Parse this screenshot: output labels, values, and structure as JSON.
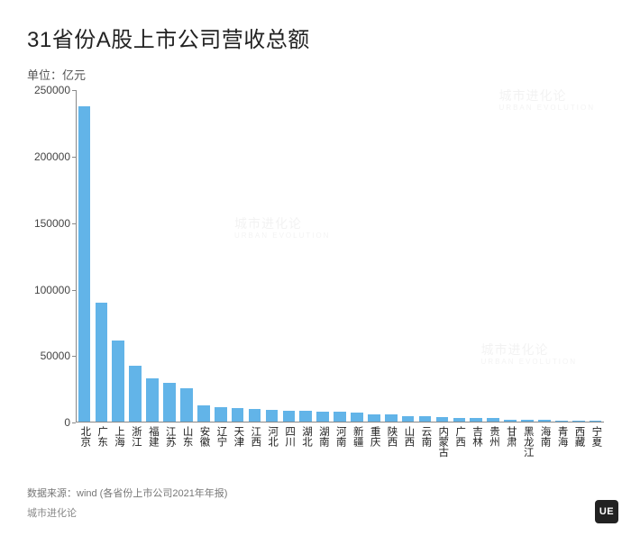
{
  "title": "31省份A股上市公司营收总额",
  "subtitle": "单位：亿元",
  "source_line": "数据来源：wind (各省份上市公司2021年年报)",
  "brand_line": "城市进化论",
  "badge": "UE",
  "watermark": {
    "cn": "城市进化论",
    "en": "URBAN EVOLUTION"
  },
  "chart": {
    "type": "bar",
    "bar_color": "#62b4e8",
    "axis_color": "#888888",
    "background_color": "#ffffff",
    "label_color": "#222222",
    "tick_color": "#444444",
    "ylim": [
      0,
      250000
    ],
    "ytick_step": 50000,
    "yticks": [
      0,
      50000,
      100000,
      150000,
      200000,
      250000
    ],
    "bar_width_ratio": 0.72,
    "title_fontsize": 24,
    "label_fontsize": 12,
    "categories": [
      "北京",
      "广东",
      "上海",
      "浙江",
      "福建",
      "江苏",
      "山东",
      "安徽",
      "辽宁",
      "天津",
      "江西",
      "河北",
      "四川",
      "湖北",
      "湖南",
      "河南",
      "新疆",
      "重庆",
      "陕西",
      "山西",
      "云南",
      "内蒙古",
      "广西",
      "吉林",
      "贵州",
      "甘肃",
      "黑龙江",
      "海南",
      "青海",
      "西藏",
      "宁夏"
    ],
    "values": [
      238000,
      90000,
      62000,
      43000,
      33000,
      30000,
      26000,
      13000,
      11500,
      11000,
      10000,
      9500,
      9000,
      8800,
      8500,
      8300,
      7500,
      6200,
      6000,
      5000,
      4800,
      4500,
      3800,
      3500,
      3200,
      2500,
      2400,
      2000,
      1500,
      1200,
      1200
    ]
  }
}
